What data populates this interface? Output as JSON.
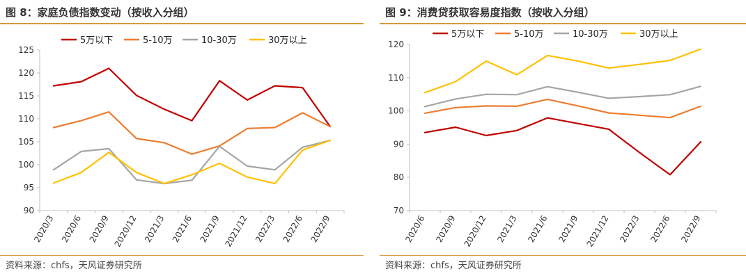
{
  "panels": [
    {
      "title": "图 8：家庭负债指数变动（按收入分组）",
      "source": "资料来源：chfs，天风证券研究所"
    },
    {
      "title": "图 9：消费贷获取容易度指数（按收入分组）",
      "source": "资料来源：chfs，天风证券研究所"
    }
  ],
  "chart_data": [
    {
      "type": "line",
      "title": "图 8：家庭负债指数变动（按收入分组）",
      "xlabel": "",
      "ylabel": "",
      "ylim": [
        90,
        125
      ],
      "yticks": [
        90,
        95,
        100,
        105,
        110,
        115,
        120,
        125
      ],
      "grid": false,
      "legend": "top",
      "categories": [
        "2020/3",
        "2020/6",
        "2020/9",
        "2020/12",
        "2021/3",
        "2021/6",
        "2021/9",
        "2021/12",
        "2022/3",
        "2022/6",
        "2022/9"
      ],
      "series": [
        {
          "name": "5万以下",
          "color": "#c00000",
          "values": [
            117.2,
            118.1,
            121.0,
            115.1,
            112.1,
            109.6,
            118.3,
            114.1,
            117.2,
            116.8,
            108.3
          ]
        },
        {
          "name": "5-10万",
          "color": "#ed7d31",
          "values": [
            108.1,
            109.6,
            111.5,
            105.7,
            104.8,
            102.3,
            104.1,
            107.9,
            108.1,
            111.3,
            108.3
          ]
        },
        {
          "name": "10-30万",
          "color": "#a5a5a5",
          "values": [
            98.9,
            102.9,
            103.5,
            96.7,
            95.9,
            96.6,
            104.0,
            99.7,
            98.9,
            103.8,
            105.3
          ]
        },
        {
          "name": "30万以上",
          "color": "#ffc000",
          "values": [
            96.0,
            98.3,
            102.7,
            98.3,
            95.9,
            97.8,
            100.3,
            97.3,
            95.9,
            103.2,
            105.3
          ]
        }
      ]
    },
    {
      "type": "line",
      "title": "图 9：消费贷获取容易度指数（按收入分组）",
      "xlabel": "",
      "ylabel": "",
      "ylim": [
        70,
        120
      ],
      "yticks": [
        70,
        80,
        90,
        100,
        110,
        120
      ],
      "grid": false,
      "legend": "top",
      "categories": [
        "2020/6",
        "2020/9",
        "2020/12",
        "2021/3",
        "2021/6",
        "2021/9",
        "2021/12",
        "2022/3",
        "2022/6",
        "2022/9"
      ],
      "series": [
        {
          "name": "5万以下",
          "color": "#c00000",
          "values": [
            93.5,
            95.1,
            92.6,
            94.1,
            97.9,
            96.2,
            94.5,
            87.5,
            80.8,
            90.7
          ]
        },
        {
          "name": "5-10万",
          "color": "#ed7d31",
          "values": [
            99.3,
            101.0,
            101.5,
            101.4,
            103.5,
            101.5,
            99.4,
            98.7,
            98.0,
            101.4
          ]
        },
        {
          "name": "10-30万",
          "color": "#a5a5a5",
          "values": [
            101.3,
            103.6,
            105.0,
            104.9,
            107.3,
            105.6,
            103.8,
            104.3,
            104.9,
            107.4
          ]
        },
        {
          "name": "30万以上",
          "color": "#ffc000",
          "values": [
            105.5,
            108.8,
            115.0,
            110.9,
            116.7,
            115.0,
            112.9,
            114.0,
            115.2,
            118.6
          ]
        }
      ]
    }
  ]
}
